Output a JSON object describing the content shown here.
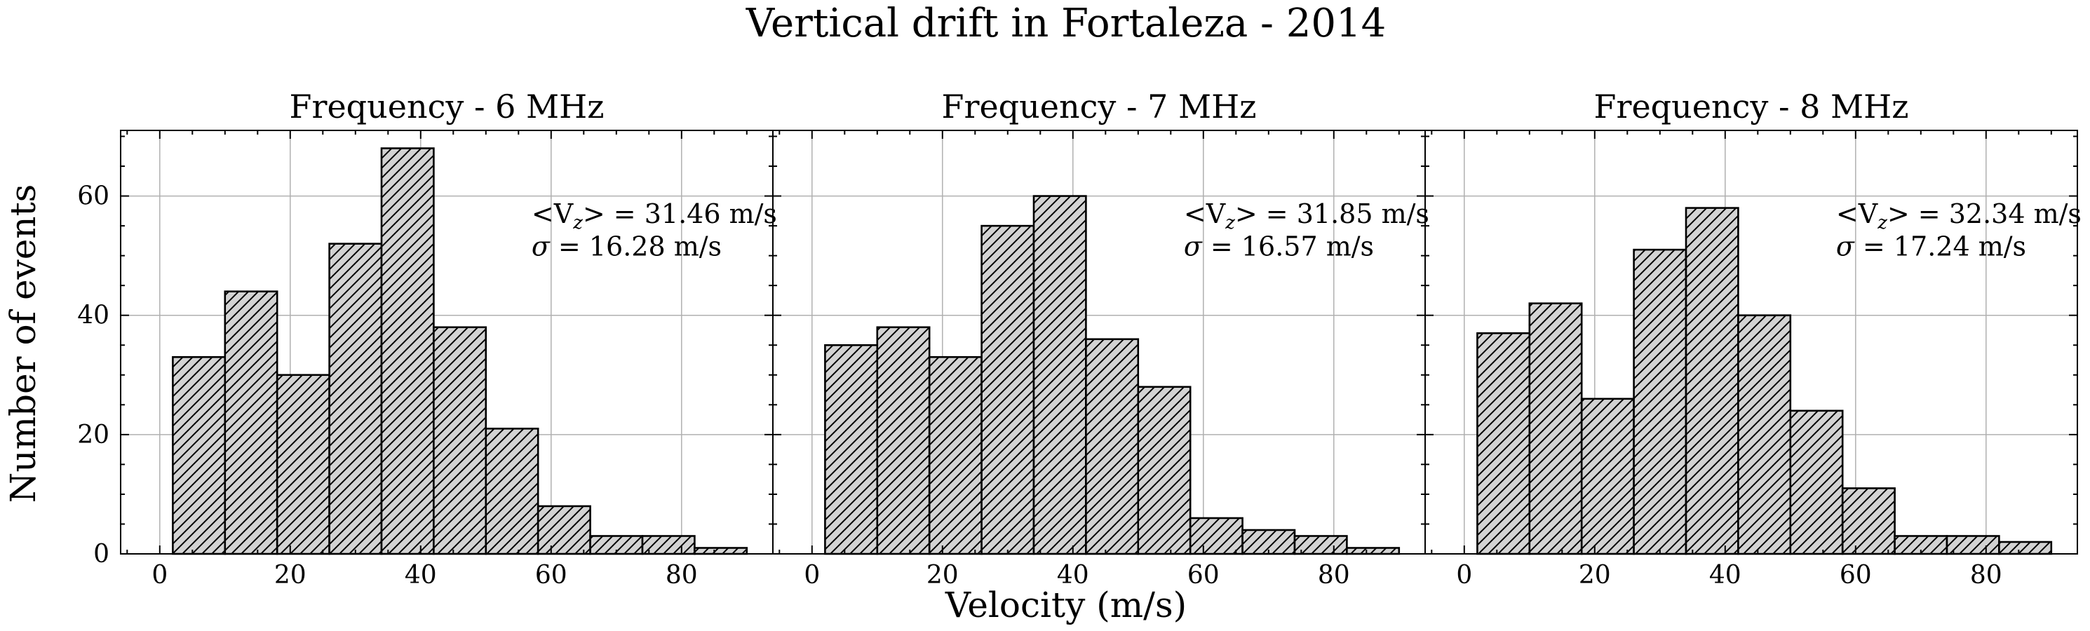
{
  "chart_data": {
    "type": "bar",
    "title": "Vertical drift in Fortaleza - 2014",
    "xlabel": "Velocity (m/s)",
    "ylabel": "Number of events",
    "xlim": [
      -6,
      94
    ],
    "ylim": [
      0,
      71
    ],
    "xticks": [
      0,
      20,
      40,
      60,
      80
    ],
    "yticks": [
      0,
      20,
      40,
      60
    ],
    "grid": true,
    "bar_fill": "#d3d3d3",
    "hatch": "diagonal",
    "panels": [
      {
        "title": "Frequency - 6 MHz",
        "bin_edges": [
          2,
          10,
          18,
          26,
          34,
          42,
          50,
          58,
          66,
          74,
          82,
          90
        ],
        "counts": [
          33,
          44,
          30,
          52,
          68,
          38,
          21,
          8,
          3,
          3,
          1
        ],
        "mean_label": "<V",
        "mean_sub": "z",
        "mean_value": "> = 31.46 m/s",
        "sigma_symbol": "σ",
        "sigma_value": " = 16.28 m/s"
      },
      {
        "title": "Frequency - 7 MHz",
        "bin_edges": [
          2,
          10,
          18,
          26,
          34,
          42,
          50,
          58,
          66,
          74,
          82,
          90
        ],
        "counts": [
          35,
          38,
          33,
          55,
          60,
          36,
          28,
          6,
          4,
          3,
          1
        ],
        "mean_label": "<V",
        "mean_sub": "z",
        "mean_value": "> = 31.85 m/s",
        "sigma_symbol": "σ",
        "sigma_value": " = 16.57 m/s"
      },
      {
        "title": "Frequency - 8 MHz",
        "bin_edges": [
          2,
          10,
          18,
          26,
          34,
          42,
          50,
          58,
          66,
          74,
          82,
          90
        ],
        "counts": [
          37,
          42,
          26,
          51,
          58,
          40,
          24,
          11,
          3,
          3,
          2
        ],
        "mean_label": "<V",
        "mean_sub": "z",
        "mean_value": "> = 32.34 m/s",
        "sigma_symbol": "σ",
        "sigma_value": " = 17.24 m/s"
      }
    ]
  }
}
